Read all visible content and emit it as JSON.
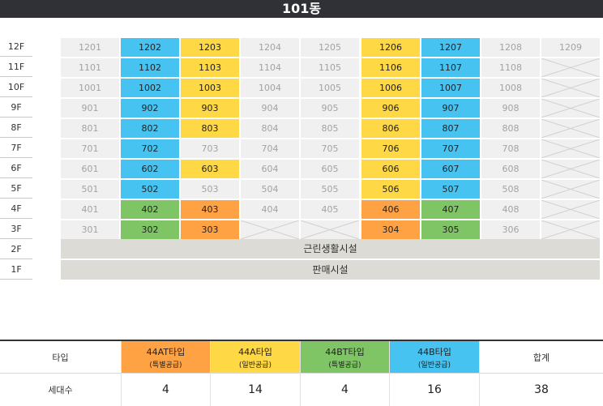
{
  "building": {
    "title": "101동"
  },
  "floors": [
    "12F",
    "11F",
    "10F",
    "9F",
    "8F",
    "7F",
    "6F",
    "5F",
    "4F",
    "3F",
    "2F",
    "1F"
  ],
  "units": [
    [
      [
        "1201",
        "none"
      ],
      [
        "1202",
        "blue"
      ],
      [
        "1203",
        "yellow"
      ],
      [
        "1204",
        "none"
      ],
      [
        "1205",
        "none"
      ],
      [
        "1206",
        "yellow"
      ],
      [
        "1207",
        "blue"
      ],
      [
        "1208",
        "none"
      ],
      [
        "1209",
        "none"
      ]
    ],
    [
      [
        "1101",
        "none"
      ],
      [
        "1102",
        "blue"
      ],
      [
        "1103",
        "yellow"
      ],
      [
        "1104",
        "none"
      ],
      [
        "1105",
        "none"
      ],
      [
        "1106",
        "yellow"
      ],
      [
        "1107",
        "blue"
      ],
      [
        "1108",
        "none"
      ],
      [
        "",
        "x"
      ]
    ],
    [
      [
        "1001",
        "none"
      ],
      [
        "1002",
        "blue"
      ],
      [
        "1003",
        "yellow"
      ],
      [
        "1004",
        "none"
      ],
      [
        "1005",
        "none"
      ],
      [
        "1006",
        "yellow"
      ],
      [
        "1007",
        "blue"
      ],
      [
        "1008",
        "none"
      ],
      [
        "",
        "x"
      ]
    ],
    [
      [
        "901",
        "none"
      ],
      [
        "902",
        "blue"
      ],
      [
        "903",
        "yellow"
      ],
      [
        "904",
        "none"
      ],
      [
        "905",
        "none"
      ],
      [
        "906",
        "yellow"
      ],
      [
        "907",
        "blue"
      ],
      [
        "908",
        "none"
      ],
      [
        "",
        "x"
      ]
    ],
    [
      [
        "801",
        "none"
      ],
      [
        "802",
        "blue"
      ],
      [
        "803",
        "yellow"
      ],
      [
        "804",
        "none"
      ],
      [
        "805",
        "none"
      ],
      [
        "806",
        "yellow"
      ],
      [
        "807",
        "blue"
      ],
      [
        "808",
        "none"
      ],
      [
        "",
        "x"
      ]
    ],
    [
      [
        "701",
        "none"
      ],
      [
        "702",
        "blue"
      ],
      [
        "703",
        "none"
      ],
      [
        "704",
        "none"
      ],
      [
        "705",
        "none"
      ],
      [
        "706",
        "yellow"
      ],
      [
        "707",
        "blue"
      ],
      [
        "708",
        "none"
      ],
      [
        "",
        "x"
      ]
    ],
    [
      [
        "601",
        "none"
      ],
      [
        "602",
        "blue"
      ],
      [
        "603",
        "yellow"
      ],
      [
        "604",
        "none"
      ],
      [
        "605",
        "none"
      ],
      [
        "606",
        "yellow"
      ],
      [
        "607",
        "blue"
      ],
      [
        "608",
        "none"
      ],
      [
        "",
        "x"
      ]
    ],
    [
      [
        "501",
        "none"
      ],
      [
        "502",
        "blue"
      ],
      [
        "503",
        "none"
      ],
      [
        "504",
        "none"
      ],
      [
        "505",
        "none"
      ],
      [
        "506",
        "yellow"
      ],
      [
        "507",
        "blue"
      ],
      [
        "508",
        "none"
      ],
      [
        "",
        "x"
      ]
    ],
    [
      [
        "401",
        "none"
      ],
      [
        "402",
        "green"
      ],
      [
        "403",
        "orange"
      ],
      [
        "404",
        "none"
      ],
      [
        "405",
        "none"
      ],
      [
        "406",
        "orange"
      ],
      [
        "407",
        "green"
      ],
      [
        "408",
        "none"
      ],
      [
        "",
        "x"
      ]
    ],
    [
      [
        "301",
        "none"
      ],
      [
        "302",
        "green"
      ],
      [
        "303",
        "orange"
      ],
      [
        "",
        "x"
      ],
      [
        "",
        "x"
      ],
      [
        "304",
        "orange"
      ],
      [
        "305",
        "green"
      ],
      [
        "306",
        "none"
      ],
      [
        "",
        "x"
      ]
    ]
  ],
  "facilities": {
    "f2": "근린생활시설",
    "f1": "판매시설"
  },
  "summary": {
    "type_label": "타입",
    "count_label": "세대수",
    "total_label": "합계",
    "types": [
      {
        "name": "44AT타입",
        "sub": "(특별공급)",
        "count": "4",
        "color": "orange"
      },
      {
        "name": "44A타입",
        "sub": "(일반공급)",
        "count": "14",
        "color": "yellow"
      },
      {
        "name": "44BT타입",
        "sub": "(특별공급)",
        "count": "4",
        "color": "green"
      },
      {
        "name": "44B타입",
        "sub": "(일반공급)",
        "count": "16",
        "color": "blue"
      }
    ],
    "total": "38"
  },
  "colors": {
    "blue": "#46c3f0",
    "yellow": "#fed845",
    "green": "#7fc566",
    "orange": "#ffa244",
    "header": "#2f3136"
  }
}
